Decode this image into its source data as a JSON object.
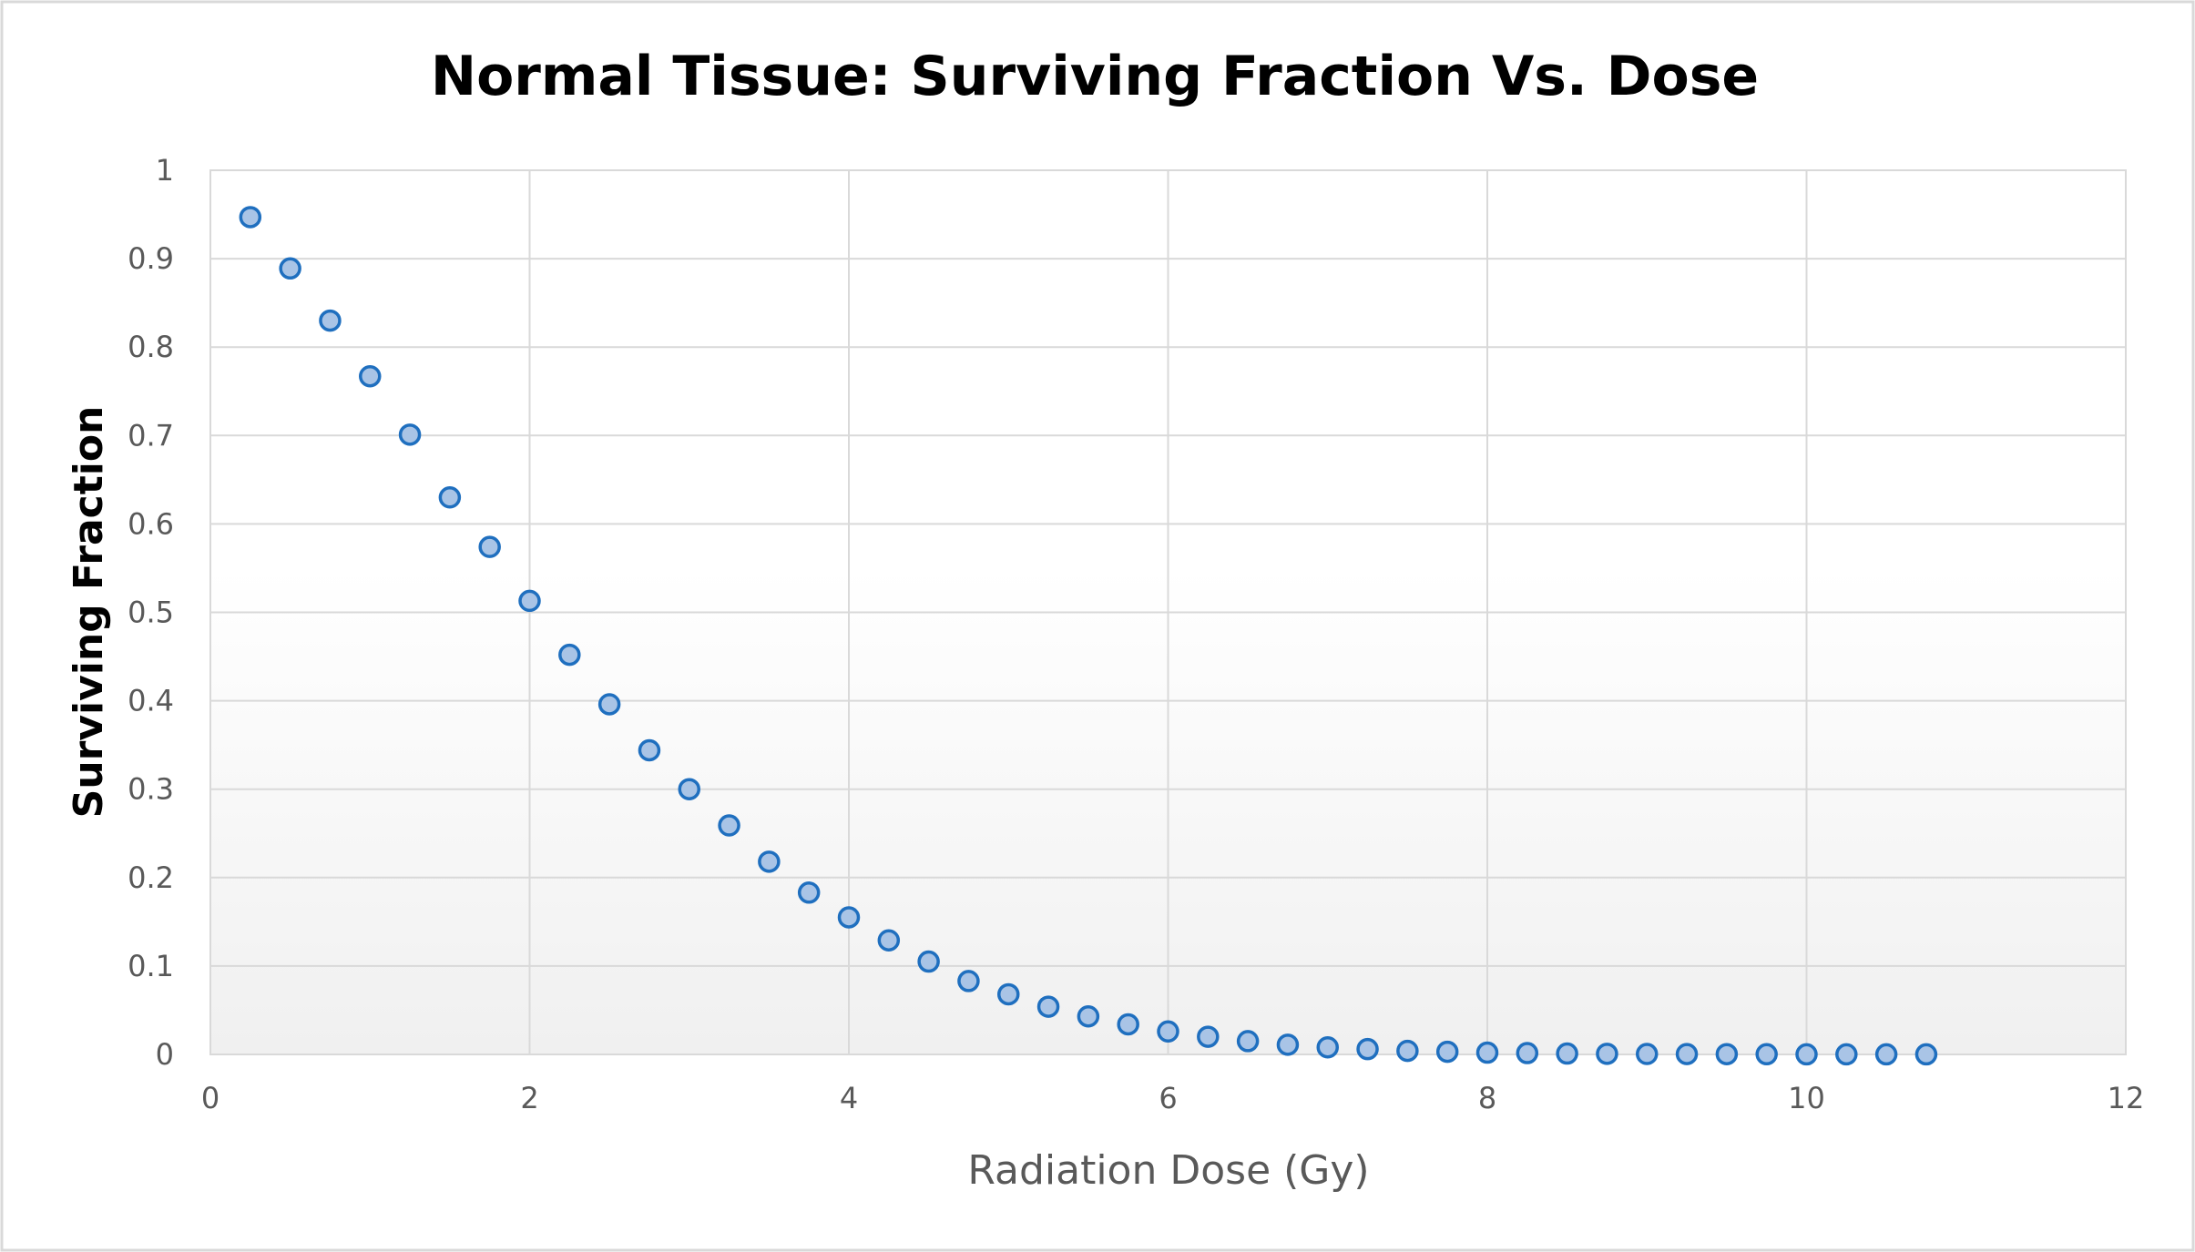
{
  "chart_data": {
    "type": "scatter",
    "title": "Normal Tissue: Surviving Fraction Vs. Dose",
    "xlabel": "Radiation Dose (Gy)",
    "ylabel": "Surviving Fraction",
    "xlim": [
      0,
      12
    ],
    "ylim": [
      0,
      1
    ],
    "xticks": [
      0,
      2,
      4,
      6,
      8,
      10,
      12
    ],
    "yticks": [
      0,
      0.1,
      0.2,
      0.3,
      0.4,
      0.5,
      0.6,
      0.7,
      0.8,
      0.9,
      1
    ],
    "x_tick_labels": [
      "0",
      "2",
      "4",
      "6",
      "8",
      "10",
      "12"
    ],
    "y_tick_labels": [
      "0",
      "0.1",
      "0.2",
      "0.3",
      "0.4",
      "0.5",
      "0.6",
      "0.7",
      "0.8",
      "0.9",
      "1"
    ],
    "grid": true,
    "legend": "none",
    "series": [
      {
        "marker_fill": "#a9c4e6",
        "marker_edge": "#1f6fbf",
        "x": [
          0.25,
          0.5,
          0.75,
          1.0,
          1.25,
          1.5,
          1.75,
          2.0,
          2.25,
          2.5,
          2.75,
          3.0,
          3.25,
          3.5,
          3.75,
          4.0,
          4.25,
          4.5,
          4.75,
          5.0,
          5.25,
          5.5,
          5.75,
          6.0,
          6.25,
          6.5,
          6.75,
          7.0,
          7.25,
          7.5,
          7.75,
          8.0,
          8.25,
          8.5,
          8.75,
          9.0,
          9.25,
          9.5,
          9.75,
          10.0,
          10.25,
          10.5,
          10.75
        ],
        "y": [
          0.947,
          0.889,
          0.83,
          0.767,
          0.701,
          0.63,
          0.574,
          0.513,
          0.452,
          0.396,
          0.344,
          0.3,
          0.259,
          0.218,
          0.183,
          0.155,
          0.129,
          0.105,
          0.083,
          0.068,
          0.054,
          0.043,
          0.034,
          0.026,
          0.02,
          0.015,
          0.011,
          0.008,
          0.006,
          0.004,
          0.003,
          0.002,
          0.0015,
          0.001,
          0.0007,
          0.0005,
          0.0004,
          0.0003,
          0.0002,
          0.0001,
          0.0001,
          0.0001,
          0.0001
        ]
      }
    ]
  },
  "colors": {
    "frame_border": "#d9d9d9",
    "grid": "#d9d9d9",
    "tick_text": "#595959",
    "plot_gradient_bottom": "#f0f0f0"
  }
}
